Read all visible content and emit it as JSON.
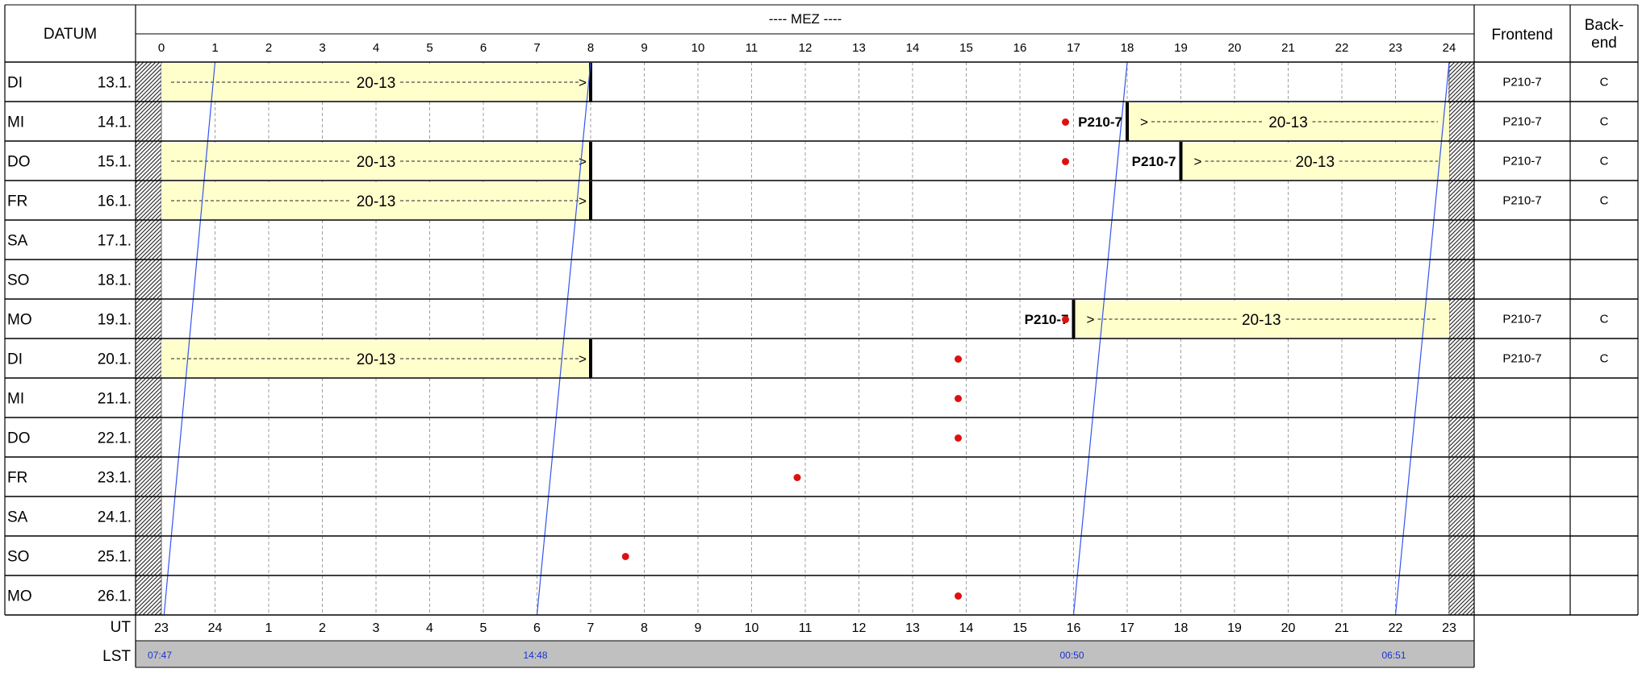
{
  "header": {
    "datum_label": "DATUM",
    "mez_label": "---- MEZ ----",
    "frontend_label": "Frontend",
    "backend_label_line1": "Back-",
    "backend_label_line2": "end"
  },
  "mez_hours": [
    "0",
    "1",
    "2",
    "3",
    "4",
    "5",
    "6",
    "7",
    "8",
    "9",
    "10",
    "11",
    "12",
    "13",
    "14",
    "15",
    "16",
    "17",
    "18",
    "19",
    "20",
    "21",
    "22",
    "23",
    "24"
  ],
  "ut_label": "UT",
  "ut_hours": [
    "23",
    "24",
    "1",
    "2",
    "3",
    "4",
    "5",
    "6",
    "7",
    "8",
    "9",
    "10",
    "11",
    "12",
    "13",
    "14",
    "15",
    "16",
    "17",
    "18",
    "19",
    "20",
    "21",
    "22",
    "23"
  ],
  "lst_label": "LST",
  "lst_marks": [
    {
      "text": "07:47",
      "mez": 0.0
    },
    {
      "text": "14:48",
      "mez": 7.0
    },
    {
      "text": "00:50",
      "mez": 17.0
    },
    {
      "text": "06:51",
      "mez": 23.0
    }
  ],
  "days": [
    {
      "weekday": "DI",
      "date": "13.1.",
      "frontend": "P210-7",
      "backend": "C",
      "moon_mez": null
    },
    {
      "weekday": "MI",
      "date": "14.1.",
      "frontend": "P210-7",
      "backend": "C",
      "moon_mez": 16.85
    },
    {
      "weekday": "DO",
      "date": "15.1.",
      "frontend": "P210-7",
      "backend": "C",
      "moon_mez": 16.85
    },
    {
      "weekday": "FR",
      "date": "16.1.",
      "frontend": "P210-7",
      "backend": "C",
      "moon_mez": null
    },
    {
      "weekday": "SA",
      "date": "17.1.",
      "frontend": "",
      "backend": "",
      "moon_mez": null
    },
    {
      "weekday": "SO",
      "date": "18.1.",
      "frontend": "",
      "backend": "",
      "moon_mez": null
    },
    {
      "weekday": "MO",
      "date": "19.1.",
      "frontend": "P210-7",
      "backend": "C",
      "moon_mez": 16.85
    },
    {
      "weekday": "DI",
      "date": "20.1.",
      "frontend": "P210-7",
      "backend": "C",
      "moon_mez": 14.85
    },
    {
      "weekday": "MI",
      "date": "21.1.",
      "frontend": "",
      "backend": "",
      "moon_mez": 14.85
    },
    {
      "weekday": "DO",
      "date": "22.1.",
      "frontend": "",
      "backend": "",
      "moon_mez": 14.85
    },
    {
      "weekday": "FR",
      "date": "23.1.",
      "frontend": "",
      "backend": "",
      "moon_mez": 11.85
    },
    {
      "weekday": "SA",
      "date": "24.1.",
      "frontend": "",
      "backend": "",
      "moon_mez": null
    },
    {
      "weekday": "SO",
      "date": "25.1.",
      "frontend": "",
      "backend": "",
      "moon_mez": 8.65
    },
    {
      "weekday": "MO",
      "date": "26.1.",
      "frontend": "",
      "backend": "",
      "moon_mez": 14.85
    }
  ],
  "blocks": [
    {
      "day": 0,
      "start": 0,
      "end": 8,
      "label": "20-13",
      "start_tag": "",
      "direction": "to-end"
    },
    {
      "day": 1,
      "start": 18,
      "end": 24,
      "label": "20-13",
      "start_tag": "P210-7",
      "direction": "from-start"
    },
    {
      "day": 2,
      "start": 0,
      "end": 8,
      "label": "20-13",
      "start_tag": "",
      "direction": "to-end"
    },
    {
      "day": 2,
      "start": 19,
      "end": 24,
      "label": "20-13",
      "start_tag": "P210-7",
      "direction": "from-start"
    },
    {
      "day": 3,
      "start": 0,
      "end": 8,
      "label": "20-13",
      "start_tag": "",
      "direction": "to-end"
    },
    {
      "day": 6,
      "start": 17,
      "end": 24,
      "label": "20-13",
      "start_tag": "P210-7",
      "direction": "from-start"
    },
    {
      "day": 7,
      "start": 0,
      "end": 8,
      "label": "20-13",
      "start_tag": "",
      "direction": "to-end"
    }
  ],
  "lst_lines": [
    {
      "top_mez": 1.0,
      "bottom_mez": 0.05
    },
    {
      "top_mez": 8.0,
      "bottom_mez": 7.0
    },
    {
      "top_mez": 18.0,
      "bottom_mez": 17.0
    },
    {
      "top_mez": 24.0,
      "bottom_mez": 23.0
    }
  ],
  "colors": {
    "block_fill": "#ffffcc",
    "lst_line": "#3355ee",
    "moon_dot": "#dd1111",
    "lst_band": "#c0c0c0",
    "lst_text": "#1a33cc",
    "grid": "#000000"
  }
}
